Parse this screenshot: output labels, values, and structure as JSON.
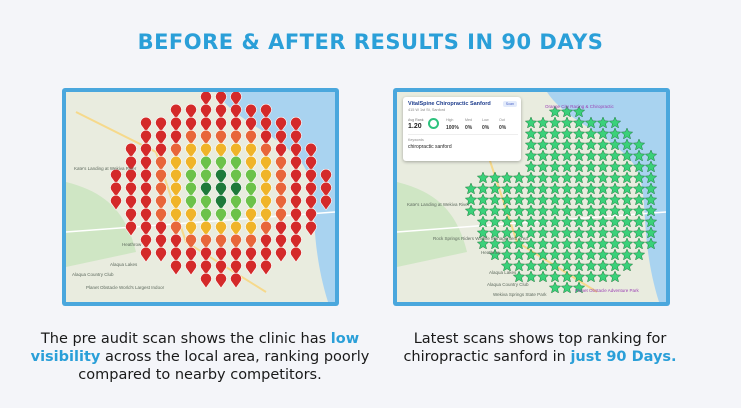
{
  "title": "BEFORE & AFTER RESULTS IN 90 DAYS",
  "left_map": {
    "labels": [
      "Kate's Landing at Wekiva River",
      "Heathrow",
      "Alaqua Lakes",
      "Alaqua Country Club",
      "Planet Obstacle World's Largest Indoor"
    ],
    "pin_count": 169
  },
  "right_map": {
    "business": "VitalSpine Chiropractic Sanford",
    "address": "415 W 1st St, Sanford",
    "badge": "Scan",
    "avg_rank_label": "Avg Rank",
    "avg_rank": "1.20",
    "stats": [
      {
        "label": "High",
        "value": "100%"
      },
      {
        "label": "Med",
        "value": "0%"
      },
      {
        "label": "Low",
        "value": "0%"
      },
      {
        "label": "Out",
        "value": "0%"
      }
    ],
    "keywords_label": "Keywords",
    "keyword": "chiropractic sanford",
    "labels": [
      "Orange City Racing & Chiropractic",
      "Heathrow",
      "Rock Springs Riders Wildlife Management Area",
      "Alaqua Lakes",
      "Alaqua Country Club",
      "Planet Obstacle Adventure Park",
      "Kate's Landing at Wekiva River",
      "Wekiva Springs State Park"
    ],
    "pin_count": 221
  },
  "caption_left": {
    "part1": "The pre audit scan shows the clinic has",
    "highlight": "low visibility",
    "part2": "across the local area, ranking poorly compared to nearby competitors."
  },
  "caption_right": {
    "part1": "Latest scans shows top ranking for chiropractic sanford in",
    "highlight": "just 90 Days."
  },
  "colors": {
    "title": "#2a9fd8",
    "highlight": "#2a9fd8",
    "frame": "#4aa7dd",
    "rank_1": "#1e7a3a",
    "rank_good": "#6cc24a",
    "rank_mid": "#f0b429",
    "rank_poor": "#e8663a",
    "rank_worst": "#d42a2a",
    "top_rank_star": "#3ad17a"
  }
}
